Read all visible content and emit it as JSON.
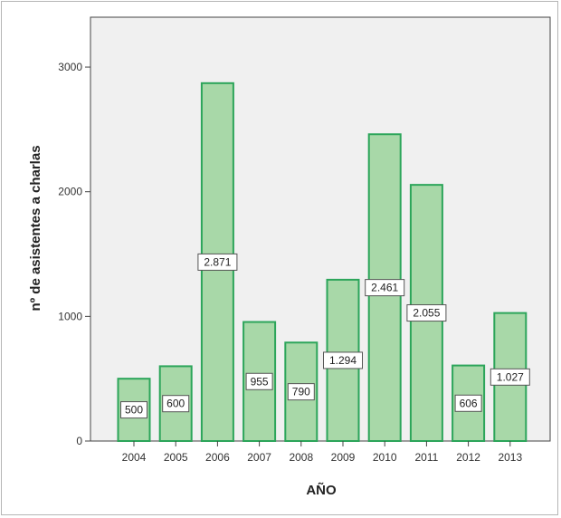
{
  "chart_data": {
    "type": "bar",
    "categories": [
      "2004",
      "2005",
      "2006",
      "2007",
      "2008",
      "2009",
      "2010",
      "2011",
      "2012",
      "2013"
    ],
    "values": [
      500,
      600,
      2871,
      955,
      790,
      1294,
      2461,
      2055,
      606,
      1027
    ],
    "data_labels": [
      "500",
      "600",
      "2.871",
      "955",
      "790",
      "1.294",
      "2.461",
      "2.055",
      "606",
      "1.027"
    ],
    "xlabel": "AÑO",
    "ylabel": "nº de asistentes a charlas",
    "ylim": [
      0,
      3400
    ],
    "yticks": [
      0,
      1000,
      2000,
      3000
    ],
    "ytick_labels": [
      "0",
      "1000",
      "2000",
      "3000"
    ],
    "grid": false,
    "colors": {
      "bar_fill": "#a8d8a8",
      "bar_stroke": "#2ca55a",
      "plot_background": "#f0f0f0",
      "axis": "#444444"
    }
  }
}
